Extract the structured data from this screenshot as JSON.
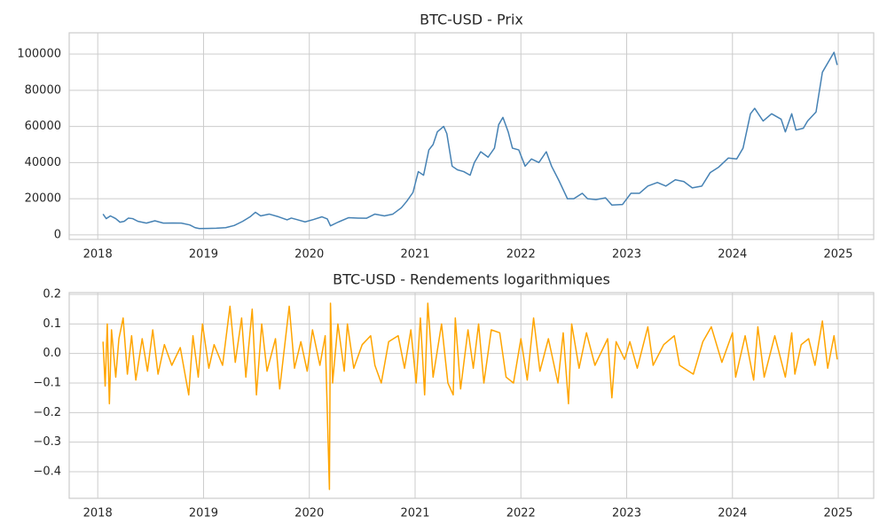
{
  "chart_data": [
    {
      "type": "line",
      "title": "BTC-USD - Prix",
      "color": "#4682b4",
      "grid": true,
      "xlim": [
        2017.73,
        2025.335
      ],
      "xticks": [
        2018,
        2019,
        2020,
        2021,
        2022,
        2023,
        2024,
        2025
      ],
      "ylim": [
        -2500,
        111800
      ],
      "yticks": [
        0,
        20000,
        40000,
        60000,
        80000,
        100000
      ],
      "x": [
        2018.05,
        2018.08,
        2018.12,
        2018.17,
        2018.21,
        2018.25,
        2018.29,
        2018.33,
        2018.38,
        2018.46,
        2018.54,
        2018.62,
        2018.71,
        2018.79,
        2018.87,
        2018.92,
        2018.96,
        2019.04,
        2019.12,
        2019.21,
        2019.29,
        2019.37,
        2019.44,
        2019.49,
        2019.54,
        2019.62,
        2019.71,
        2019.79,
        2019.83,
        2019.88,
        2019.96,
        2020.04,
        2020.12,
        2020.17,
        2020.2,
        2020.27,
        2020.37,
        2020.46,
        2020.54,
        2020.62,
        2020.71,
        2020.79,
        2020.87,
        2020.92,
        2020.98,
        2021.03,
        2021.08,
        2021.13,
        2021.17,
        2021.21,
        2021.27,
        2021.3,
        2021.35,
        2021.4,
        2021.46,
        2021.52,
        2021.56,
        2021.62,
        2021.69,
        2021.75,
        2021.79,
        2021.83,
        2021.88,
        2021.92,
        2021.98,
        2022.04,
        2022.1,
        2022.17,
        2022.24,
        2022.29,
        2022.36,
        2022.44,
        2022.5,
        2022.58,
        2022.63,
        2022.71,
        2022.8,
        2022.86,
        2022.96,
        2023.04,
        2023.12,
        2023.2,
        2023.29,
        2023.37,
        2023.46,
        2023.54,
        2023.62,
        2023.71,
        2023.79,
        2023.87,
        2023.96,
        2024.04,
        2024.1,
        2024.17,
        2024.21,
        2024.29,
        2024.37,
        2024.46,
        2024.5,
        2024.56,
        2024.6,
        2024.67,
        2024.71,
        2024.79,
        2024.85,
        2024.92,
        2024.96,
        2024.99
      ],
      "values": [
        11500,
        9000,
        10500,
        9000,
        7000,
        7500,
        9300,
        9000,
        7500,
        6500,
        7800,
        6500,
        6600,
        6500,
        5500,
        4000,
        3500,
        3600,
        3700,
        4000,
        5200,
        7500,
        10000,
        12500,
        10500,
        11500,
        10000,
        8300,
        9300,
        8500,
        7200,
        8500,
        10000,
        8800,
        5000,
        7000,
        9500,
        9300,
        9200,
        11500,
        10500,
        11500,
        15000,
        18500,
        23500,
        35000,
        33000,
        47000,
        50000,
        57000,
        60000,
        56000,
        38000,
        36000,
        35000,
        33000,
        40000,
        46000,
        43000,
        48000,
        61000,
        65000,
        57000,
        48000,
        47000,
        38000,
        42000,
        40000,
        46000,
        38000,
        30000,
        20000,
        20000,
        23000,
        20000,
        19500,
        20500,
        16500,
        16800,
        23000,
        23000,
        27000,
        29000,
        27000,
        30500,
        29500,
        26000,
        27000,
        34500,
        37500,
        42500,
        42000,
        48000,
        67000,
        70000,
        63000,
        67000,
        64000,
        57000,
        67000,
        58000,
        59000,
        63000,
        68000,
        90000,
        97000,
        101000,
        94000
      ]
    },
    {
      "type": "line",
      "title": "BTC-USD - Rendements logarithmiques",
      "color": "#ffa500",
      "grid": true,
      "xlim": [
        2017.73,
        2025.335
      ],
      "xticks": [
        2018,
        2019,
        2020,
        2021,
        2022,
        2023,
        2024,
        2025
      ],
      "ylim": [
        -0.49,
        0.206
      ],
      "yticks": [
        {
          "value": -0.4,
          "label": "−0.4"
        },
        {
          "value": -0.3,
          "label": "−0.3"
        },
        {
          "value": -0.2,
          "label": "−0.2"
        },
        {
          "value": -0.1,
          "label": "−0.1"
        },
        {
          "value": 0,
          "label": "0.0"
        },
        0.1,
        0.2
      ],
      "x": [
        2018.05,
        2018.07,
        2018.09,
        2018.11,
        2018.13,
        2018.17,
        2018.2,
        2018.24,
        2018.28,
        2018.32,
        2018.36,
        2018.42,
        2018.47,
        2018.52,
        2018.57,
        2018.63,
        2018.7,
        2018.78,
        2018.86,
        2018.9,
        2018.95,
        2018.99,
        2019.05,
        2019.1,
        2019.18,
        2019.25,
        2019.3,
        2019.36,
        2019.4,
        2019.46,
        2019.5,
        2019.55,
        2019.6,
        2019.68,
        2019.72,
        2019.81,
        2019.86,
        2019.92,
        2019.98,
        2020.03,
        2020.1,
        2020.15,
        2020.19,
        2020.2,
        2020.22,
        2020.27,
        2020.33,
        2020.36,
        2020.42,
        2020.5,
        2020.58,
        2020.62,
        2020.68,
        2020.75,
        2020.84,
        2020.9,
        2020.96,
        2021.01,
        2021.05,
        2021.09,
        2021.12,
        2021.17,
        2021.25,
        2021.31,
        2021.36,
        2021.38,
        2021.43,
        2021.5,
        2021.55,
        2021.6,
        2021.65,
        2021.72,
        2021.8,
        2021.86,
        2021.93,
        2022.0,
        2022.06,
        2022.12,
        2022.18,
        2022.26,
        2022.35,
        2022.4,
        2022.45,
        2022.48,
        2022.55,
        2022.62,
        2022.7,
        2022.82,
        2022.86,
        2022.9,
        2022.98,
        2023.03,
        2023.1,
        2023.2,
        2023.25,
        2023.35,
        2023.45,
        2023.5,
        2023.63,
        2023.72,
        2023.8,
        2023.9,
        2024.0,
        2024.03,
        2024.12,
        2024.2,
        2024.24,
        2024.3,
        2024.4,
        2024.5,
        2024.56,
        2024.59,
        2024.65,
        2024.72,
        2024.78,
        2024.85,
        2024.9,
        2024.96,
        2024.99
      ],
      "values": [
        0.04,
        -0.11,
        0.1,
        -0.17,
        0.08,
        -0.08,
        0.05,
        0.12,
        -0.07,
        0.06,
        -0.09,
        0.05,
        -0.06,
        0.08,
        -0.07,
        0.03,
        -0.04,
        0.02,
        -0.14,
        0.06,
        -0.08,
        0.1,
        -0.05,
        0.03,
        -0.04,
        0.16,
        -0.03,
        0.12,
        -0.08,
        0.15,
        -0.14,
        0.1,
        -0.06,
        0.05,
        -0.12,
        0.16,
        -0.05,
        0.04,
        -0.06,
        0.08,
        -0.04,
        0.06,
        -0.46,
        0.17,
        -0.1,
        0.1,
        -0.06,
        0.1,
        -0.05,
        0.03,
        0.06,
        -0.04,
        -0.1,
        0.04,
        0.06,
        -0.05,
        0.08,
        -0.1,
        0.12,
        -0.14,
        0.17,
        -0.08,
        0.1,
        -0.1,
        -0.14,
        0.12,
        -0.12,
        0.08,
        -0.05,
        0.1,
        -0.1,
        0.08,
        0.07,
        -0.08,
        -0.1,
        0.05,
        -0.09,
        0.12,
        -0.06,
        0.05,
        -0.1,
        0.07,
        -0.17,
        0.1,
        -0.05,
        0.07,
        -0.04,
        0.05,
        -0.15,
        0.04,
        -0.02,
        0.04,
        -0.05,
        0.09,
        -0.04,
        0.03,
        0.06,
        -0.04,
        -0.07,
        0.04,
        0.09,
        -0.03,
        0.07,
        -0.08,
        0.06,
        -0.09,
        0.09,
        -0.08,
        0.06,
        -0.08,
        0.07,
        -0.07,
        0.03,
        0.05,
        -0.04,
        0.11,
        -0.05,
        0.06,
        -0.02
      ]
    }
  ]
}
